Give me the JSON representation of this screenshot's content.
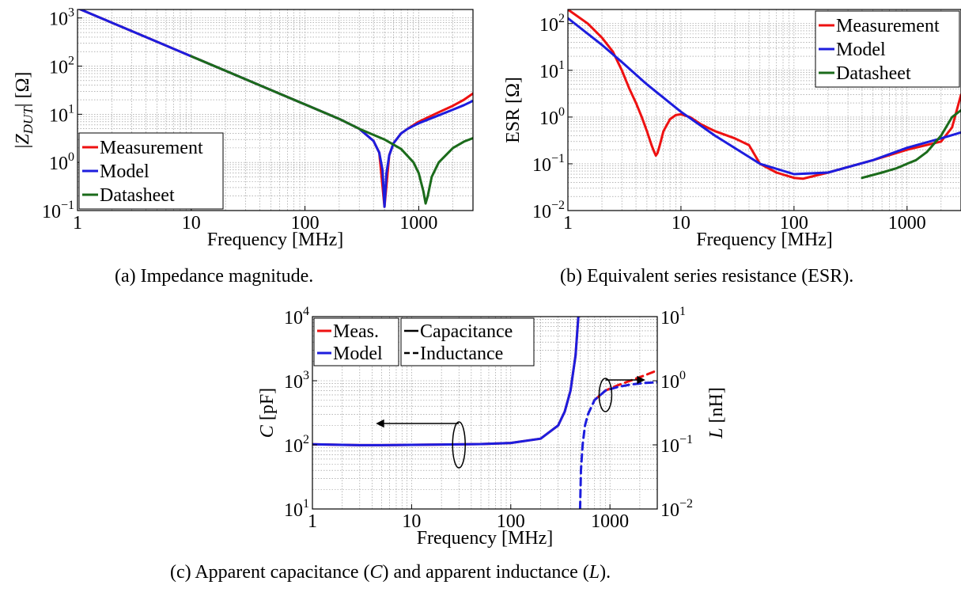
{
  "captions": {
    "a": "(a) Impedance magnitude.",
    "b": "(b) Equivalent series resistance (ESR).",
    "c_parts": [
      "(c) Apparent capacitance (",
      "C",
      ") and apparent inductance (",
      "L",
      ")."
    ]
  },
  "colors": {
    "measurement": "#ee1111",
    "model": "#1d1dde",
    "datasheet": "#1b6b1b",
    "grid": "#8a8a8a"
  },
  "chart_data": [
    {
      "id": "a",
      "type": "line",
      "title": "",
      "xlabel": "Frequency [MHz]",
      "ylabel": "|Z_DUT| [Ω]",
      "xscale": "log",
      "yscale": "log",
      "xlim": [
        1,
        3000
      ],
      "ylim": [
        0.1,
        1500
      ],
      "xticks": [
        1,
        10,
        100,
        1000
      ],
      "xtick_labels": [
        "1",
        "10",
        "100",
        "1000"
      ],
      "yticks": [
        0.1,
        1,
        10,
        100,
        1000
      ],
      "ytick_labels": [
        "10^-1",
        "10^0",
        "10^1",
        "10^2",
        "10^3"
      ],
      "grid": true,
      "legend": {
        "position": "bottom-left",
        "entries": [
          "Measurement",
          "Model",
          "Datasheet"
        ]
      },
      "series": [
        {
          "name": "Measurement",
          "color": "#ee1111",
          "x": [
            1,
            2,
            5,
            10,
            20,
            50,
            100,
            200,
            300,
            400,
            450,
            500,
            550,
            600,
            700,
            800,
            1000,
            1500,
            2000,
            2500,
            3000
          ],
          "y": [
            1600,
            800,
            320,
            160,
            80,
            32,
            16,
            8,
            5,
            2.8,
            1.6,
            0.12,
            1.4,
            2.5,
            4.0,
            5.0,
            7.0,
            11,
            15,
            20,
            27
          ]
        },
        {
          "name": "Model",
          "color": "#1d1dde",
          "x": [
            1,
            2,
            5,
            10,
            20,
            50,
            100,
            200,
            300,
            400,
            450,
            480,
            500,
            520,
            550,
            600,
            700,
            800,
            1000,
            1500,
            2000,
            2500,
            3000
          ],
          "y": [
            1600,
            800,
            320,
            160,
            80,
            32,
            16,
            8,
            5,
            2.8,
            1.6,
            0.7,
            0.12,
            0.6,
            1.4,
            2.5,
            4.0,
            5.0,
            6.5,
            9.5,
            12.5,
            15.5,
            19
          ]
        },
        {
          "name": "Datasheet",
          "color": "#1b6b1b",
          "x": [
            10,
            20,
            50,
            100,
            200,
            300,
            500,
            700,
            900,
            1000,
            1100,
            1150,
            1200,
            1300,
            1500,
            2000,
            2500,
            3000
          ],
          "y": [
            160,
            80,
            32,
            16,
            8,
            5,
            3.0,
            1.9,
            1.0,
            0.6,
            0.25,
            0.14,
            0.2,
            0.5,
            1.0,
            2.0,
            2.7,
            3.2
          ]
        }
      ]
    },
    {
      "id": "b",
      "type": "line",
      "title": "",
      "xlabel": "Frequency [MHz]",
      "ylabel": "ESR [Ω]",
      "xscale": "log",
      "yscale": "log",
      "xlim": [
        1,
        3000
      ],
      "ylim": [
        0.01,
        200
      ],
      "xticks": [
        1,
        10,
        100,
        1000
      ],
      "xtick_labels": [
        "1",
        "10",
        "100",
        "1000"
      ],
      "yticks": [
        0.01,
        0.1,
        1,
        10,
        100
      ],
      "ytick_labels": [
        "10^-2",
        "10^-1",
        "10^0",
        "10^1",
        "10^2"
      ],
      "grid": true,
      "legend": {
        "position": "top-right",
        "entries": [
          "Measurement",
          "Model",
          "Datasheet"
        ]
      },
      "series": [
        {
          "name": "Measurement",
          "color": "#ee1111",
          "x": [
            1,
            1.5,
            2,
            2.5,
            3,
            3.5,
            4,
            4.5,
            5,
            5.5,
            5.8,
            6,
            6.2,
            6.5,
            7,
            8,
            9,
            10,
            12,
            15,
            20,
            30,
            40,
            50,
            70,
            100,
            120,
            200,
            500,
            1000,
            2000,
            2500,
            3000
          ],
          "y": [
            200,
            100,
            50,
            25,
            10,
            4,
            2,
            1.0,
            0.5,
            0.25,
            0.18,
            0.15,
            0.17,
            0.25,
            0.5,
            0.9,
            1.1,
            1.15,
            1.0,
            0.7,
            0.5,
            0.35,
            0.25,
            0.1,
            0.065,
            0.05,
            0.048,
            0.065,
            0.12,
            0.2,
            0.3,
            0.6,
            3.0
          ]
        },
        {
          "name": "Model",
          "color": "#1d1dde",
          "x": [
            1,
            2,
            3,
            5,
            10,
            20,
            50,
            100,
            200,
            500,
            1000,
            2000,
            3000
          ],
          "y": [
            130,
            35,
            15,
            5,
            1.3,
            0.4,
            0.1,
            0.06,
            0.065,
            0.12,
            0.22,
            0.35,
            0.47
          ]
        },
        {
          "name": "Datasheet",
          "color": "#1b6b1b",
          "x": [
            400,
            600,
            800,
            1000,
            1200,
            1500,
            2000,
            2500,
            3000
          ],
          "y": [
            0.05,
            0.065,
            0.08,
            0.1,
            0.12,
            0.18,
            0.4,
            1.0,
            1.4
          ]
        }
      ]
    },
    {
      "id": "c",
      "type": "line",
      "title": "",
      "xlabel": "Frequency [MHz]",
      "ylabel": "C [pF]",
      "ylabel_right": "L [nH]",
      "xscale": "log",
      "yscale": "log",
      "xlim": [
        1,
        3000
      ],
      "ylim": [
        10,
        10000
      ],
      "ylim_right": [
        0.01,
        10
      ],
      "xticks": [
        1,
        10,
        100,
        1000
      ],
      "xtick_labels": [
        "1",
        "10",
        "100",
        "1000"
      ],
      "yticks": [
        10,
        100,
        1000,
        10000
      ],
      "ytick_labels": [
        "10^1",
        "10^2",
        "10^3",
        "10^4"
      ],
      "yticks_right": [
        0.01,
        0.1,
        1,
        10
      ],
      "ytick_labels_right": [
        "10^-2",
        "10^-1",
        "10^0",
        "10^1"
      ],
      "grid": true,
      "legend": {
        "position": "top-left",
        "entries": [
          "Meas.",
          "Model"
        ],
        "style_entries": [
          "Capacitance",
          "Inductance"
        ]
      },
      "series": [
        {
          "name": "Meas.",
          "quantity": "Capacitance",
          "axis": "left",
          "color": "#ee1111",
          "x": [
            1,
            2,
            3,
            5,
            10,
            20,
            50,
            100,
            200,
            300,
            350,
            400,
            450,
            480
          ],
          "y": [
            102,
            100,
            99,
            99,
            100,
            101,
            103,
            107,
            125,
            200,
            330,
            700,
            2500,
            10000
          ]
        },
        {
          "name": "Model",
          "quantity": "Capacitance",
          "axis": "left",
          "color": "#1d1dde",
          "x": [
            1,
            2,
            3,
            5,
            10,
            20,
            50,
            100,
            200,
            300,
            350,
            400,
            450,
            480
          ],
          "y": [
            102,
            100,
            99,
            99,
            100,
            101,
            103,
            107,
            125,
            200,
            330,
            700,
            2500,
            10000
          ]
        },
        {
          "name": "Meas.",
          "quantity": "Inductance",
          "axis": "right",
          "color": "#ee1111",
          "x": [
            700,
            900,
            1200,
            1600,
            2200,
            3000
          ],
          "y": [
            0.5,
            0.7,
            0.85,
            1.0,
            1.2,
            1.45
          ]
        },
        {
          "name": "Model",
          "quantity": "Inductance",
          "axis": "right",
          "color": "#1d1dde",
          "x": [
            500,
            510,
            530,
            560,
            600,
            700,
            900,
            1200,
            1600,
            2200,
            3000
          ],
          "y": [
            0.01,
            0.04,
            0.1,
            0.2,
            0.3,
            0.5,
            0.7,
            0.8,
            0.87,
            0.92,
            0.95
          ]
        }
      ]
    }
  ]
}
